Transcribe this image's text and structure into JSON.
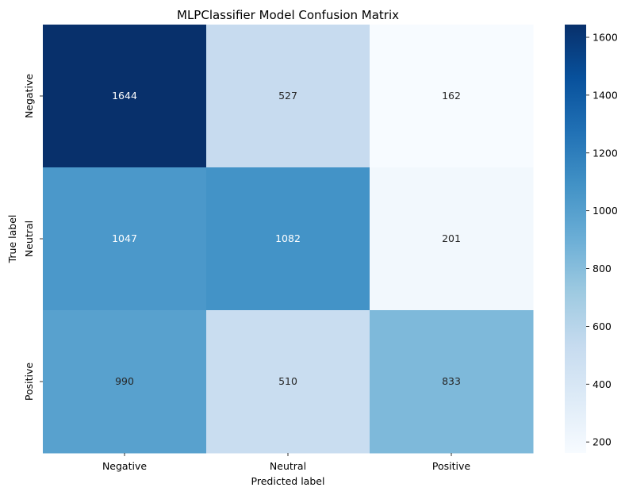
{
  "chart_data": {
    "type": "heatmap",
    "title": "MLPClassifier Model Confusion Matrix",
    "xlabel": "Predicted label",
    "ylabel": "True label",
    "x_categories": [
      "Negative",
      "Neutral",
      "Positive"
    ],
    "y_categories": [
      "Negative",
      "Neutral",
      "Positive"
    ],
    "values": [
      [
        1644,
        527,
        162
      ],
      [
        1047,
        1082,
        201
      ],
      [
        990,
        510,
        833
      ]
    ],
    "colormap": "Blues",
    "colorbar": {
      "range": [
        162,
        1644
      ],
      "ticks": [
        200,
        400,
        600,
        800,
        1000,
        1200,
        1400,
        1600
      ]
    },
    "grid": false,
    "legend": "colorbar-right"
  }
}
